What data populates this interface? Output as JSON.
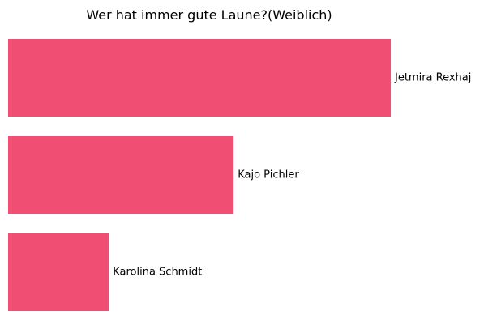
{
  "chart_data": {
    "type": "bar",
    "orientation": "horizontal",
    "title": "Wer hat immer gute Laune?(Weiblich)",
    "categories": [
      "Jetmira Rexhaj",
      "Kajo Pichler",
      "Karolina Schmidt"
    ],
    "values": [
      3.8,
      2.24,
      1.0
    ],
    "xlim": [
      0,
      3.8
    ],
    "xlabel": "",
    "ylabel": "",
    "grid": false,
    "axes_visible": false,
    "bar_color": "#f04e72"
  }
}
